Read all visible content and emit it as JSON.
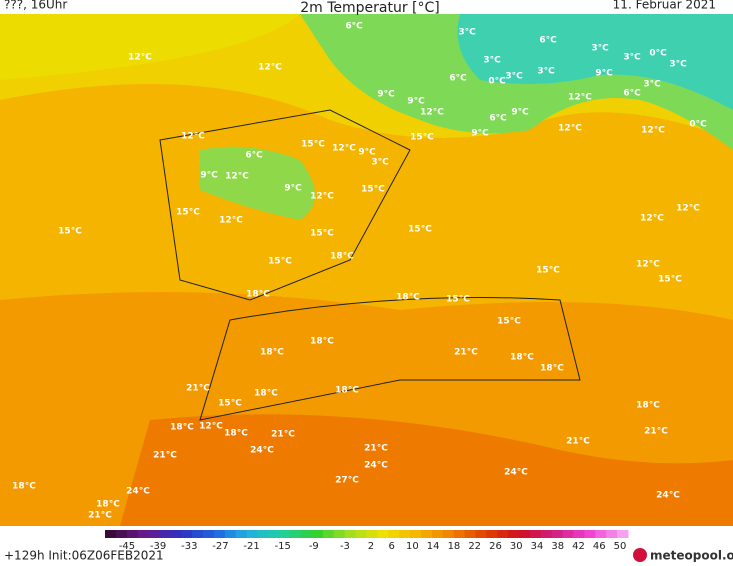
{
  "header": {
    "left": "???, 16Uhr",
    "title": "2m Temperatur [°C]",
    "date": "11. Februar 2021"
  },
  "map": {
    "labels": [
      "6°C",
      "3°C",
      "6°C",
      "3°C",
      "3°C",
      "0°C",
      "3°C",
      "12°C",
      "12°C",
      "3°C",
      "6°C",
      "0°C",
      "3°C",
      "3°C",
      "9°C",
      "3°C",
      "12°C",
      "6°C",
      "9°C",
      "9°C",
      "12°C",
      "9°C",
      "6°C",
      "0°C",
      "12°C",
      "12°C",
      "9°C",
      "15°C",
      "12°C",
      "15°C",
      "12°C",
      "9°C",
      "3°C",
      "6°C",
      "9°C",
      "12°C",
      "9°C",
      "15°C",
      "12°C",
      "15°C",
      "12°C",
      "12°C",
      "12°C",
      "15°C",
      "15°C",
      "15°C",
      "18°C",
      "15°C",
      "12°C",
      "15°C",
      "15°C",
      "18°C",
      "18°C",
      "15°C",
      "15°C",
      "18°C",
      "18°C",
      "21°C",
      "18°C",
      "18°C",
      "21°C",
      "18°C",
      "18°C",
      "15°C",
      "18°C",
      "18°C",
      "12°C",
      "18°C",
      "21°C",
      "21°C",
      "21°C",
      "24°C",
      "21°C",
      "21°C",
      "24°C",
      "24°C",
      "27°C",
      "18°C",
      "24°C",
      "24°C",
      "18°C",
      "21°C"
    ]
  },
  "legend": {
    "ticks": [
      -45,
      -39,
      -33,
      -27,
      -21,
      -15,
      -9,
      -3,
      2,
      6,
      10,
      14,
      18,
      22,
      26,
      30,
      34,
      38,
      42,
      46,
      50
    ]
  },
  "footer": {
    "run": "+129h Init:06Z06FEB2021",
    "brand": "meteopool.org"
  }
}
